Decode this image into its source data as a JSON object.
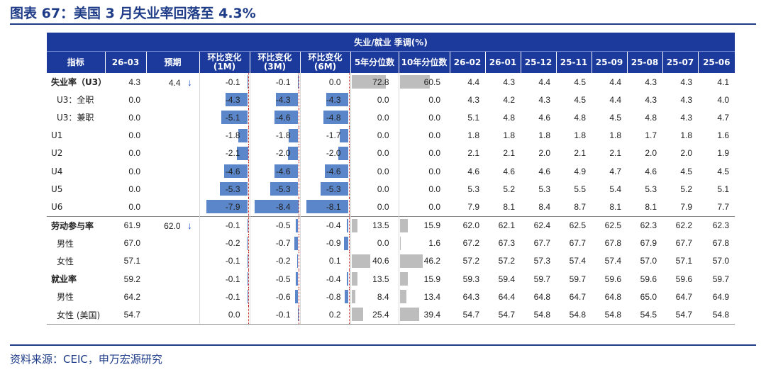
{
  "title": "图表 67：美国 3 月失业率回落至 4.3%",
  "source": "资料来源：CEIC，申万宏源研究",
  "colors": {
    "header_bg": "#1b3a9c",
    "bar_blue": "#5b86c9",
    "bar_gray": "#bdbdbd",
    "accent": "#1f3c88"
  },
  "icons": {
    "down_arrow": "down-arrow-icon"
  },
  "chart_data": {
    "type": "table",
    "group_header": "失业/就业 季调(%)",
    "columns": [
      "指标",
      "26-03",
      "预期",
      "环比变化(1M)",
      "环比变化(3M)",
      "环比变化(6M)",
      "5年分位数",
      "10年分位数",
      "26-02",
      "26-01",
      "25-12",
      "25-11",
      "25-09",
      "25-08",
      "25-07",
      "25-06"
    ],
    "bar_scale": {
      "change_min": -8.4,
      "percentile_max": 100
    },
    "rows": [
      {
        "label": "失业率（U3）",
        "bold": true,
        "indent": false,
        "sep": false,
        "current": "4.3",
        "forecast": "4.4",
        "arrow": "↓",
        "chg1m": "-0.1",
        "chg3m": "-0.1",
        "chg6m": "0.0",
        "p5y": "72.8",
        "p10y": "60.5",
        "hist": [
          "4.4",
          "4.3",
          "4.4",
          "4.5",
          "4.4",
          "4.3",
          "4.3",
          "4.1"
        ]
      },
      {
        "label": "U3：全职",
        "bold": false,
        "indent": true,
        "sep": false,
        "current": "0.0",
        "forecast": "",
        "arrow": "",
        "chg1m": "-4.3",
        "chg3m": "-4.3",
        "chg6m": "-4.3",
        "p5y": "0.0",
        "p10y": "0.0",
        "hist": [
          "4.3",
          "4.2",
          "4.3",
          "4.5",
          "4.4",
          "4.3",
          "4.3",
          "4.0"
        ]
      },
      {
        "label": "U3：兼职",
        "bold": false,
        "indent": true,
        "sep": false,
        "current": "0.0",
        "forecast": "",
        "arrow": "",
        "chg1m": "-5.1",
        "chg3m": "-4.6",
        "chg6m": "-4.8",
        "p5y": "0.0",
        "p10y": "0.0",
        "hist": [
          "5.1",
          "4.8",
          "4.6",
          "4.8",
          "4.5",
          "4.8",
          "4.3",
          "4.7"
        ]
      },
      {
        "label": "U1",
        "bold": false,
        "indent": false,
        "sep": false,
        "current": "0.0",
        "forecast": "",
        "arrow": "",
        "chg1m": "-1.8",
        "chg3m": "-1.8",
        "chg6m": "-1.7",
        "p5y": "0.0",
        "p10y": "0.0",
        "hist": [
          "1.8",
          "1.8",
          "1.8",
          "1.8",
          "1.8",
          "1.7",
          "1.8",
          "1.6"
        ]
      },
      {
        "label": "U2",
        "bold": false,
        "indent": false,
        "sep": false,
        "current": "0.0",
        "forecast": "",
        "arrow": "",
        "chg1m": "-2.1",
        "chg3m": "-2.0",
        "chg6m": "-2.0",
        "p5y": "0.0",
        "p10y": "0.0",
        "hist": [
          "2.1",
          "2.1",
          "2.0",
          "2.1",
          "2.1",
          "2.0",
          "2.0",
          "1.9"
        ]
      },
      {
        "label": "U4",
        "bold": false,
        "indent": false,
        "sep": false,
        "current": "0.0",
        "forecast": "",
        "arrow": "",
        "chg1m": "-4.6",
        "chg3m": "-4.6",
        "chg6m": "-4.6",
        "p5y": "0.0",
        "p10y": "0.0",
        "hist": [
          "4.6",
          "4.6",
          "4.6",
          "4.9",
          "4.7",
          "4.6",
          "4.5",
          "4.5"
        ]
      },
      {
        "label": "U5",
        "bold": false,
        "indent": false,
        "sep": false,
        "current": "0.0",
        "forecast": "",
        "arrow": "",
        "chg1m": "-5.3",
        "chg3m": "-5.3",
        "chg6m": "-5.3",
        "p5y": "0.0",
        "p10y": "0.0",
        "hist": [
          "5.3",
          "5.2",
          "5.3",
          "5.5",
          "5.4",
          "5.3",
          "5.2",
          "5.1"
        ]
      },
      {
        "label": "U6",
        "bold": false,
        "indent": false,
        "sep": false,
        "current": "0.0",
        "forecast": "",
        "arrow": "",
        "chg1m": "-7.9",
        "chg3m": "-8.4",
        "chg6m": "-8.1",
        "p5y": "0.0",
        "p10y": "0.0",
        "hist": [
          "7.9",
          "8.1",
          "8.4",
          "8.7",
          "8.1",
          "8.1",
          "7.9",
          "7.7"
        ]
      },
      {
        "label": "劳动参与率",
        "bold": true,
        "indent": false,
        "sep": true,
        "current": "61.9",
        "forecast": "62.0",
        "arrow": "↓",
        "chg1m": "-0.1",
        "chg3m": "-0.5",
        "chg6m": "-0.4",
        "p5y": "13.5",
        "p10y": "15.9",
        "hist": [
          "62.0",
          "62.1",
          "62.4",
          "62.5",
          "62.5",
          "62.3",
          "62.2",
          "62.3"
        ]
      },
      {
        "label": "男性",
        "bold": false,
        "indent": true,
        "sep": false,
        "current": "67.0",
        "forecast": "",
        "arrow": "",
        "chg1m": "-0.2",
        "chg3m": "-0.7",
        "chg6m": "-0.9",
        "p5y": "0.0",
        "p10y": "1.6",
        "hist": [
          "67.2",
          "67.3",
          "67.7",
          "67.7",
          "67.8",
          "67.9",
          "67.7",
          "67.8"
        ]
      },
      {
        "label": "女性",
        "bold": false,
        "indent": true,
        "sep": false,
        "current": "57.1",
        "forecast": "",
        "arrow": "",
        "chg1m": "-0.1",
        "chg3m": "-0.2",
        "chg6m": "0.1",
        "p5y": "40.6",
        "p10y": "46.2",
        "hist": [
          "57.2",
          "57.2",
          "57.3",
          "57.4",
          "57.4",
          "57.0",
          "57.1",
          "57.0"
        ]
      },
      {
        "label": "就业率",
        "bold": true,
        "indent": false,
        "sep": false,
        "current": "59.2",
        "forecast": "",
        "arrow": "",
        "chg1m": "-0.1",
        "chg3m": "-0.5",
        "chg6m": "-0.4",
        "p5y": "13.5",
        "p10y": "15.9",
        "hist": [
          "59.3",
          "59.4",
          "59.7",
          "59.7",
          "59.6",
          "59.6",
          "59.6",
          "59.7"
        ]
      },
      {
        "label": "男性",
        "bold": false,
        "indent": true,
        "sep": false,
        "current": "64.2",
        "forecast": "",
        "arrow": "",
        "chg1m": "-0.1",
        "chg3m": "-0.6",
        "chg6m": "-0.8",
        "p5y": "8.4",
        "p10y": "13.4",
        "hist": [
          "64.3",
          "64.4",
          "64.8",
          "64.7",
          "64.8",
          "65.0",
          "64.7",
          "64.9"
        ]
      },
      {
        "label": "女性 (美国)",
        "bold": false,
        "indent": true,
        "sep": false,
        "current": "54.7",
        "forecast": "",
        "arrow": "",
        "chg1m": "0.0",
        "chg3m": "-0.1",
        "chg6m": "0.2",
        "p5y": "25.4",
        "p10y": "39.4",
        "hist": [
          "54.7",
          "54.7",
          "54.8",
          "54.8",
          "54.8",
          "54.5",
          "54.7",
          "54.8"
        ]
      }
    ]
  }
}
